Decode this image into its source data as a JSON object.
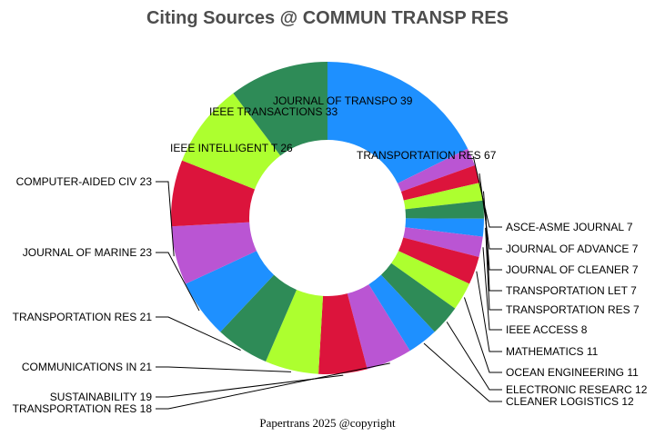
{
  "chart_data": {
    "type": "pie",
    "subtype": "donut",
    "title": "Citing Sources @ COMMUN TRANSP RES",
    "footer": "Papertrans 2025 @copyright",
    "slices": [
      {
        "label": "TRANSPORTATION RES",
        "value": 67,
        "text": "TRANSPORTATION RES 67",
        "color": "#1e90ff"
      },
      {
        "label": "ASCE-ASME JOURNAL",
        "value": 7,
        "text": "ASCE-ASME JOURNAL  7",
        "color": "#ba55d3"
      },
      {
        "label": "JOURNAL OF ADVANCE",
        "value": 7,
        "text": "JOURNAL OF ADVANCE 7",
        "color": "#dc143c"
      },
      {
        "label": "JOURNAL OF CLEANER",
        "value": 7,
        "text": "JOURNAL OF CLEANER 7",
        "color": "#adff2f"
      },
      {
        "label": "TRANSPORTATION LET",
        "value": 7,
        "text": "TRANSPORTATION LET 7",
        "color": "#2e8b57"
      },
      {
        "label": "TRANSPORTATION RES",
        "value": 7,
        "text": "TRANSPORTATION RES 7",
        "color": "#1e90ff"
      },
      {
        "label": "IEEE ACCESS",
        "value": 8,
        "text": "IEEE ACCESS 8",
        "color": "#ba55d3"
      },
      {
        "label": "MATHEMATICS",
        "value": 11,
        "text": "MATHEMATICS 11",
        "color": "#dc143c"
      },
      {
        "label": "OCEAN ENGINEERING",
        "value": 11,
        "text": "OCEAN ENGINEERING 11",
        "color": "#adff2f"
      },
      {
        "label": "ELECTRONIC RESEARC",
        "value": 12,
        "text": "ELECTRONIC RESEARC 12",
        "color": "#2e8b57"
      },
      {
        "label": "CLEANER LOGISTICS",
        "value": 12,
        "text": "CLEANER LOGISTICS  12",
        "color": "#1e90ff"
      },
      {
        "label": "TRANSPORTATION RES",
        "value": 18,
        "text": "TRANSPORTATION RES 18",
        "color": "#ba55d3"
      },
      {
        "label": "SUSTAINABILITY",
        "value": 19,
        "text": "SUSTAINABILITY 19",
        "color": "#dc143c"
      },
      {
        "label": "COMMUNICATIONS IN",
        "value": 21,
        "text": "COMMUNICATIONS IN  21",
        "color": "#adff2f"
      },
      {
        "label": "TRANSPORTATION RES",
        "value": 21,
        "text": "TRANSPORTATION RES 21",
        "color": "#2e8b57"
      },
      {
        "label": "JOURNAL OF MARINE",
        "value": 23,
        "text": "JOURNAL OF MARINE  23",
        "color": "#1e90ff"
      },
      {
        "label": "COMPUTER-AIDED CIV",
        "value": 23,
        "text": "COMPUTER-AIDED CIV 23",
        "color": "#ba55d3"
      },
      {
        "label": "IEEE INTELLIGENT T",
        "value": 26,
        "text": "IEEE INTELLIGENT T 26",
        "color": "#dc143c"
      },
      {
        "label": "IEEE TRANSACTIONS",
        "value": 33,
        "text": "IEEE TRANSACTIONS  33",
        "color": "#adff2f"
      },
      {
        "label": "JOURNAL OF TRANSPO",
        "value": 39,
        "text": "JOURNAL OF TRANSPO 39",
        "color": "#2e8b57"
      }
    ]
  }
}
